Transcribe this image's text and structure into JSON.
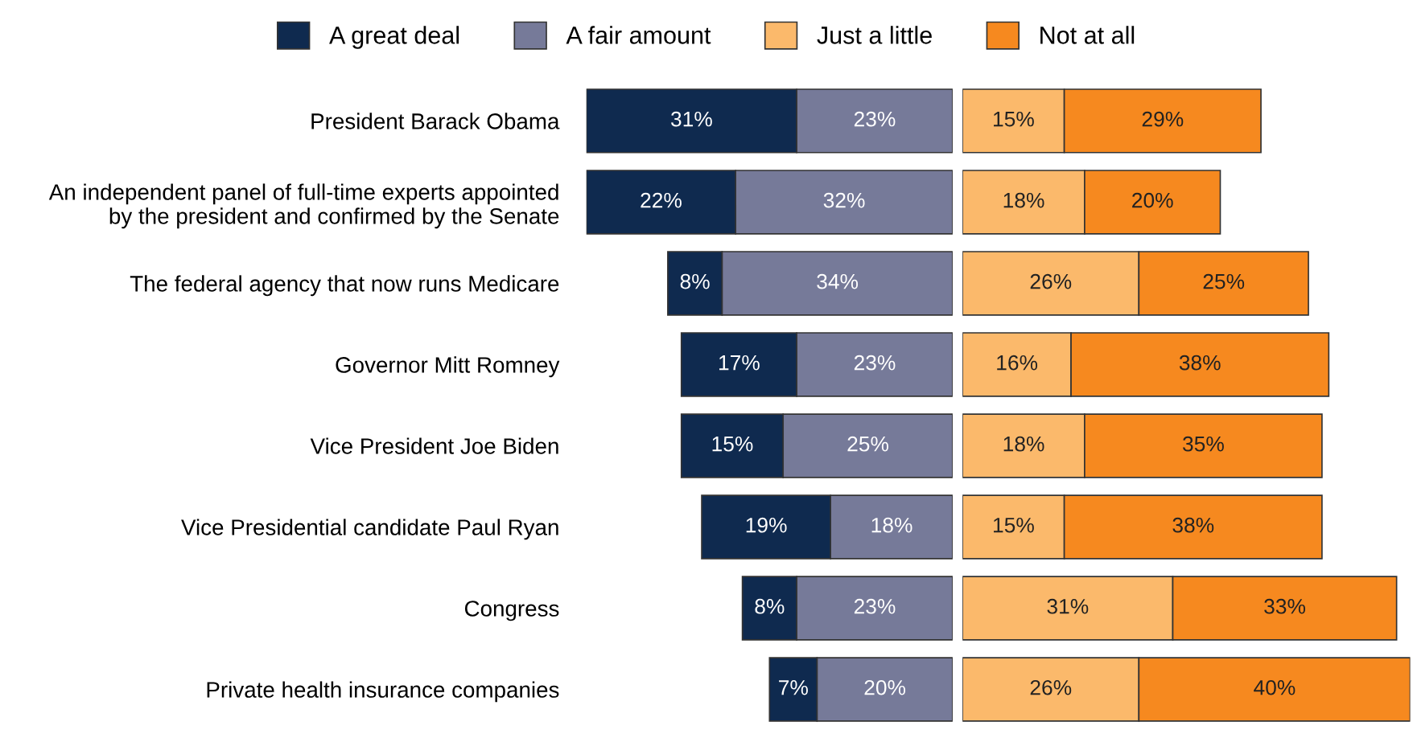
{
  "chart_data": [
    {
      "type": "bar",
      "orientation": "horizontal",
      "stacked": true,
      "legend": "top",
      "grid": false,
      "tick_labels": "y",
      "xlim": [
        54,
        0
      ],
      "categories": [
        "President Barack Obama",
        "An independent panel of full-time experts appointed\nby the president and confirmed by the Senate",
        "The federal agency that now runs Medicare",
        "Governor Mitt Romney",
        "Vice President Joe Biden",
        "Vice Presidential candidate Paul Ryan",
        "Congress",
        "Private health insurance companies"
      ],
      "series": [
        {
          "name": "A fair amount",
          "color": "#767a99",
          "values": [
            23,
            32,
            34,
            23,
            25,
            18,
            23,
            20
          ],
          "value_labels": [
            "23%",
            "32%",
            "34%",
            "23%",
            "25%",
            "18%",
            "23%",
            "20%"
          ]
        },
        {
          "name": "A great deal",
          "color": "#0f2a4f",
          "values": [
            31,
            22,
            8,
            17,
            15,
            19,
            8,
            7
          ],
          "value_labels": [
            "31%",
            "22%",
            "8%",
            "17%",
            "15%",
            "19%",
            "8%",
            "7%"
          ]
        }
      ]
    },
    {
      "type": "bar",
      "orientation": "horizontal",
      "stacked": true,
      "legend": "top",
      "grid": false,
      "tick_labels": false,
      "xlim": [
        0,
        66
      ],
      "categories": [
        null,
        null,
        null,
        null,
        null,
        null,
        null,
        null
      ],
      "series": [
        {
          "name": "Just a little",
          "color": "#fbb96b",
          "values": [
            15,
            18,
            26,
            16,
            18,
            15,
            31,
            26
          ],
          "value_labels": [
            "15%",
            "18%",
            "26%",
            "16%",
            "18%",
            "15%",
            "31%",
            "26%"
          ]
        },
        {
          "name": "Not at all",
          "color": "#f6891f",
          "values": [
            29,
            20,
            25,
            38,
            35,
            38,
            33,
            40
          ],
          "value_labels": [
            "29%",
            "20%",
            "25%",
            "38%",
            "35%",
            "38%",
            "33%",
            "40%"
          ]
        }
      ]
    }
  ]
}
